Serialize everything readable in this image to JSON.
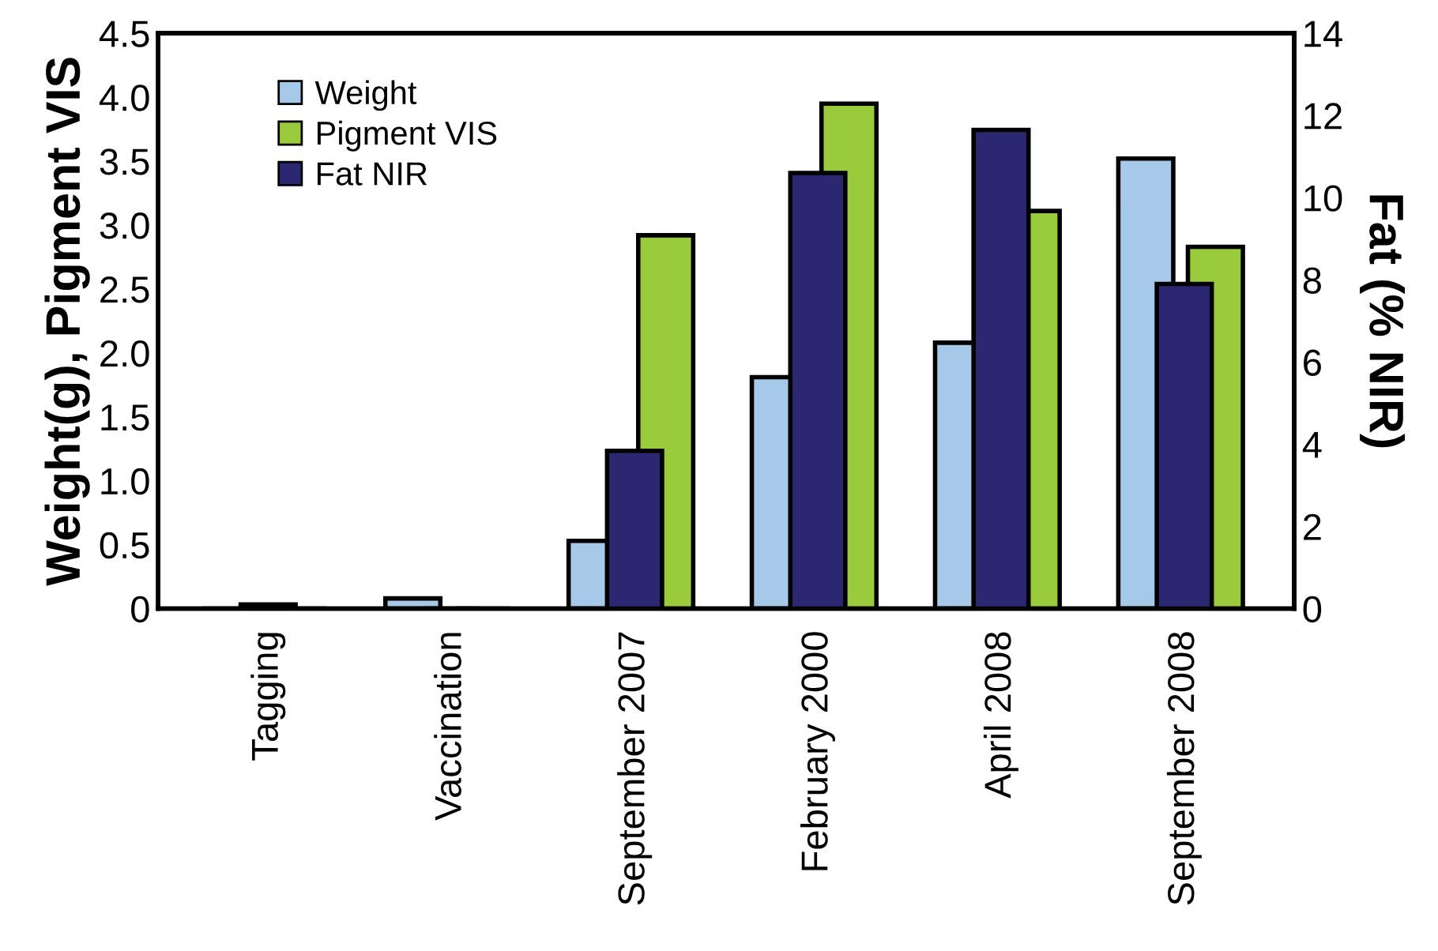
{
  "chart_data": {
    "type": "bar",
    "categories": [
      "Tagging",
      "Vaccination",
      "September 2007",
      "February 2000",
      "April 2008",
      "September 2008"
    ],
    "series": [
      {
        "name": "Weight",
        "color": "#a6c9ea",
        "values": [
          0,
          0.08,
          0.53,
          1.81,
          2.08,
          3.52
        ]
      },
      {
        "name": "Pigment VIS",
        "color": "#9acb3c",
        "values": [
          0,
          0,
          2.92,
          3.95,
          3.11,
          2.83
        ]
      },
      {
        "name": "Fat NIR",
        "color": "#2b2871",
        "axis": "y2",
        "values": [
          0.1,
          0,
          3.84,
          10.6,
          11.65,
          7.9
        ]
      }
    ],
    "ylabel": "Weight(g), Pigment VIS",
    "y2label": "Fat (% NIR)",
    "ylim": [
      0,
      4.5
    ],
    "yticks": [
      0,
      {
        "value": 0.5,
        "label": "0.5"
      },
      {
        "value": 1,
        "label": "1.0"
      },
      {
        "value": 1.5,
        "label": "1.5"
      },
      {
        "value": 2,
        "label": "2.0"
      },
      {
        "value": 2.5,
        "label": "2.5"
      },
      {
        "value": 3,
        "label": "3.0"
      },
      {
        "value": 3.5,
        "label": "3.5"
      },
      {
        "value": 4,
        "label": "4.0"
      },
      {
        "value": 4.5,
        "label": "4.5"
      }
    ],
    "y2lim": [
      0,
      14
    ],
    "y2ticks": [
      0,
      2,
      4,
      6,
      8,
      10,
      12,
      14
    ],
    "legend": "top left",
    "grid": false
  }
}
